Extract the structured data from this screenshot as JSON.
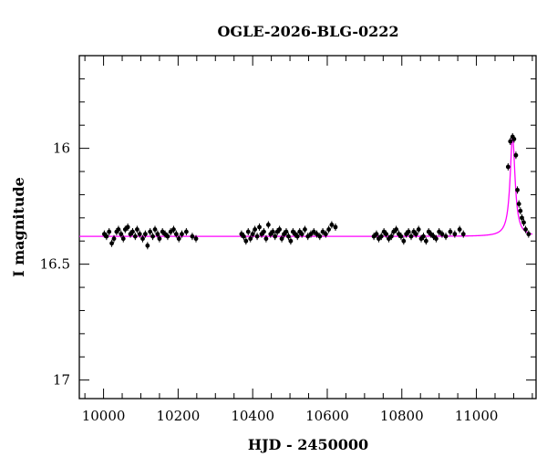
{
  "chart_data": {
    "type": "scatter",
    "title": "OGLE-2026-BLG-0222",
    "xlabel": "HJD - 2450000",
    "ylabel": "I magnitude",
    "xlim": [
      9935,
      11160
    ],
    "ylim": [
      17.08,
      15.6
    ],
    "y_inverted": true,
    "grid": false,
    "x_ticks": [
      10000,
      10200,
      10400,
      10600,
      10800,
      11000
    ],
    "x_tick_labels": [
      "10000",
      "10200",
      "10400",
      "10600",
      "10800",
      "11000"
    ],
    "x_minor_step": 50,
    "y_ticks": [
      16,
      16.5,
      17
    ],
    "y_tick_labels": [
      "16",
      "16.5",
      "17"
    ],
    "y_minor_step": 0.1,
    "colors": {
      "data": "#000000",
      "model": "#ff00ff",
      "axes": "#000000"
    },
    "model": {
      "baseline": 16.38,
      "peak_mag": 15.95,
      "t0": 11097,
      "tE": 8,
      "x_start": 9935,
      "x_end": 11150
    },
    "series": [
      {
        "x": [
          10002,
          10008,
          10015,
          10022,
          10028,
          10035,
          10040,
          10047,
          10053,
          10058,
          10065,
          10072,
          10078,
          10085,
          10090,
          10097,
          10105,
          10112,
          10118,
          10125,
          10132,
          10138,
          10145,
          10150,
          10158,
          10165,
          10172,
          10180,
          10188,
          10195,
          10202,
          10210,
          10222,
          10238,
          10248,
          10370,
          10376,
          10382,
          10388,
          10394,
          10400,
          10406,
          10412,
          10418,
          10424,
          10430,
          10436,
          10442,
          10448,
          10454,
          10460,
          10466,
          10472,
          10478,
          10484,
          10490,
          10496,
          10502,
          10508,
          10514,
          10520,
          10526,
          10532,
          10540,
          10548,
          10556,
          10564,
          10572,
          10580,
          10588,
          10596,
          10604,
          10612,
          10622,
          10725,
          10732,
          10738,
          10745,
          10752,
          10758,
          10765,
          10772,
          10778,
          10785,
          10792,
          10798,
          10805,
          10812,
          10818,
          10825,
          10832,
          10838,
          10845,
          10852,
          10858,
          10865,
          10872,
          10878,
          10885,
          10892,
          10900,
          10908,
          10918,
          10930,
          10942,
          10955,
          10965,
          11085,
          11091,
          11097,
          11101,
          11106,
          11110,
          11114,
          11118,
          11122,
          11127,
          11132,
          11140
        ],
        "y": [
          16.37,
          16.38,
          16.36,
          16.41,
          16.39,
          16.36,
          16.35,
          16.37,
          16.39,
          16.35,
          16.34,
          16.37,
          16.36,
          16.38,
          16.35,
          16.37,
          16.39,
          16.37,
          16.42,
          16.36,
          16.38,
          16.35,
          16.37,
          16.39,
          16.36,
          16.37,
          16.38,
          16.36,
          16.35,
          16.37,
          16.39,
          16.37,
          16.36,
          16.38,
          16.39,
          16.37,
          16.38,
          16.4,
          16.36,
          16.39,
          16.37,
          16.35,
          16.38,
          16.34,
          16.37,
          16.36,
          16.39,
          16.33,
          16.37,
          16.36,
          16.38,
          16.36,
          16.35,
          16.39,
          16.37,
          16.36,
          16.38,
          16.4,
          16.36,
          16.37,
          16.38,
          16.36,
          16.37,
          16.35,
          16.38,
          16.37,
          16.36,
          16.37,
          16.38,
          16.36,
          16.37,
          16.35,
          16.33,
          16.34,
          16.38,
          16.37,
          16.39,
          16.38,
          16.36,
          16.37,
          16.39,
          16.38,
          16.36,
          16.35,
          16.37,
          16.38,
          16.4,
          16.37,
          16.36,
          16.38,
          16.36,
          16.37,
          16.35,
          16.39,
          16.38,
          16.4,
          16.36,
          16.37,
          16.38,
          16.39,
          16.36,
          16.37,
          16.38,
          16.36,
          16.37,
          16.35,
          16.37,
          16.08,
          15.97,
          15.95,
          15.96,
          16.03,
          16.18,
          16.24,
          16.27,
          16.3,
          16.32,
          16.35,
          16.37
        ]
      }
    ]
  }
}
